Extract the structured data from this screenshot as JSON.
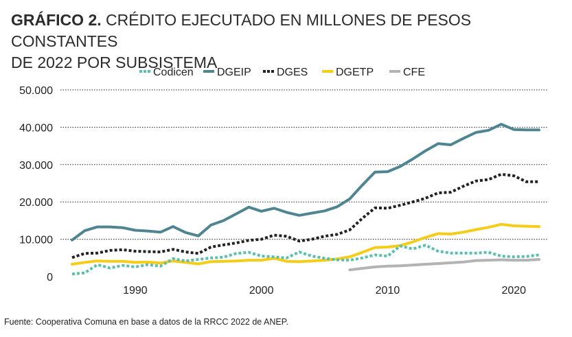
{
  "header": {
    "lead": "GRÁFICO 2.",
    "title_line1": "CRÉDITO EJECUTADO EN MILLONES DE PESOS CONSTANTES",
    "title_line2": "DE 2022 POR SUBSISTEMA"
  },
  "source": "Fuente: Cooperativa Comuna en base a datos de la RRCC 2022 de ANEP.",
  "colors": {
    "codicen": "#5bbfae",
    "dgeip": "#4e8591",
    "dges": "#222222",
    "dgetp": "#f5cc18",
    "cfe": "#b3b3b3",
    "grid": "#222222"
  },
  "chart_data": {
    "type": "line",
    "title": "CRÉDITO EJECUTADO EN MILLONES DE PESOS CONSTANTES DE 2022 POR SUBSISTEMA",
    "xlabel": "",
    "ylabel": "",
    "xlim": [
      1985,
      2022
    ],
    "ylim": [
      0,
      50000
    ],
    "x_ticks": [
      1990,
      2000,
      2010,
      2020
    ],
    "y_ticks": [
      0,
      10000,
      20000,
      30000,
      40000,
      50000
    ],
    "y_tick_labels": [
      "0",
      "10.000",
      "20.000",
      "30.000",
      "40.000",
      "50.000"
    ],
    "grid": "horizontal dotted",
    "legend": "top",
    "series": [
      {
        "key": "codicen",
        "name": "Codicen",
        "style": "dotted",
        "x": [
          1985,
          1986,
          1987,
          1988,
          1989,
          1990,
          1991,
          1992,
          1993,
          1994,
          1995,
          1996,
          1997,
          1998,
          1999,
          2000,
          2001,
          2002,
          2003,
          2004,
          2005,
          2006,
          2007,
          2008,
          2009,
          2010,
          2011,
          2012,
          2013,
          2014,
          2015,
          2016,
          2017,
          2018,
          2019,
          2020,
          2021,
          2022
        ],
        "values": [
          700,
          1000,
          3200,
          2300,
          3000,
          2600,
          3200,
          2800,
          4800,
          4200,
          4600,
          5000,
          5200,
          6200,
          6500,
          5500,
          5300,
          5000,
          6600,
          5500,
          4900,
          4500,
          4400,
          5000,
          5800,
          5500,
          8200,
          7400,
          8400,
          6800,
          6300,
          6300,
          6300,
          6500,
          5500,
          5300,
          5400,
          5800
        ]
      },
      {
        "key": "dgeip",
        "name": "DGEIP",
        "style": "solid",
        "x": [
          1985,
          1986,
          1987,
          1988,
          1989,
          1990,
          1991,
          1992,
          1993,
          1994,
          1995,
          1996,
          1997,
          1998,
          1999,
          2000,
          2001,
          2002,
          2003,
          2004,
          2005,
          2006,
          2007,
          2008,
          2009,
          2010,
          2011,
          2012,
          2013,
          2014,
          2015,
          2016,
          2017,
          2018,
          2019,
          2020,
          2021,
          2022
        ],
        "values": [
          9800,
          12300,
          13300,
          13300,
          13100,
          12400,
          12200,
          11900,
          13400,
          11800,
          10900,
          13800,
          15000,
          16800,
          18600,
          17500,
          18300,
          17200,
          16400,
          17000,
          17600,
          18700,
          20800,
          24500,
          28000,
          28100,
          29500,
          31500,
          33700,
          35600,
          35300,
          37000,
          38600,
          39200,
          40800,
          39400,
          39300,
          39300
        ]
      },
      {
        "key": "dges",
        "name": "DGES",
        "style": "dotted",
        "x": [
          1985,
          1986,
          1987,
          1988,
          1989,
          1990,
          1991,
          1992,
          1993,
          1994,
          1995,
          1996,
          1997,
          1998,
          1999,
          2000,
          2001,
          2002,
          2003,
          2004,
          2005,
          2006,
          2007,
          2008,
          2009,
          2010,
          2011,
          2012,
          2013,
          2014,
          2015,
          2016,
          2017,
          2018,
          2019,
          2020,
          2021,
          2022
        ],
        "values": [
          5100,
          6200,
          6300,
          7000,
          7200,
          6800,
          6700,
          6600,
          7300,
          6600,
          6200,
          7900,
          8500,
          9000,
          9700,
          10000,
          11100,
          10800,
          9500,
          10000,
          10800,
          11300,
          12500,
          15600,
          18400,
          18300,
          19100,
          20000,
          21000,
          22400,
          22600,
          24200,
          25600,
          26000,
          27400,
          27000,
          25400,
          25400
        ]
      },
      {
        "key": "dgetp",
        "name": "DGETP",
        "style": "solid",
        "x": [
          1985,
          1986,
          1987,
          1988,
          1989,
          1990,
          1991,
          1992,
          1993,
          1994,
          1995,
          1996,
          1997,
          1998,
          1999,
          2000,
          2001,
          2002,
          2003,
          2004,
          2005,
          2006,
          2007,
          2008,
          2009,
          2010,
          2011,
          2012,
          2013,
          2014,
          2015,
          2016,
          2017,
          2018,
          2019,
          2020,
          2021,
          2022
        ],
        "values": [
          3300,
          3800,
          4200,
          4100,
          4100,
          3800,
          3900,
          3600,
          4200,
          3800,
          3400,
          4000,
          4100,
          4200,
          4400,
          4400,
          4900,
          4100,
          4000,
          4200,
          4400,
          4700,
          5300,
          6500,
          7800,
          7900,
          8300,
          9300,
          10500,
          11500,
          11400,
          11900,
          12600,
          13200,
          14000,
          13600,
          13500,
          13400
        ]
      },
      {
        "key": "cfe",
        "name": "CFE",
        "style": "solid",
        "x": [
          2007,
          2008,
          2009,
          2010,
          2011,
          2012,
          2013,
          2014,
          2015,
          2016,
          2017,
          2018,
          2019,
          2020,
          2021,
          2022
        ],
        "values": [
          1800,
          2200,
          2600,
          2800,
          2900,
          3100,
          3300,
          3500,
          3700,
          3900,
          4300,
          4400,
          4500,
          4400,
          4400,
          4600
        ]
      }
    ]
  }
}
